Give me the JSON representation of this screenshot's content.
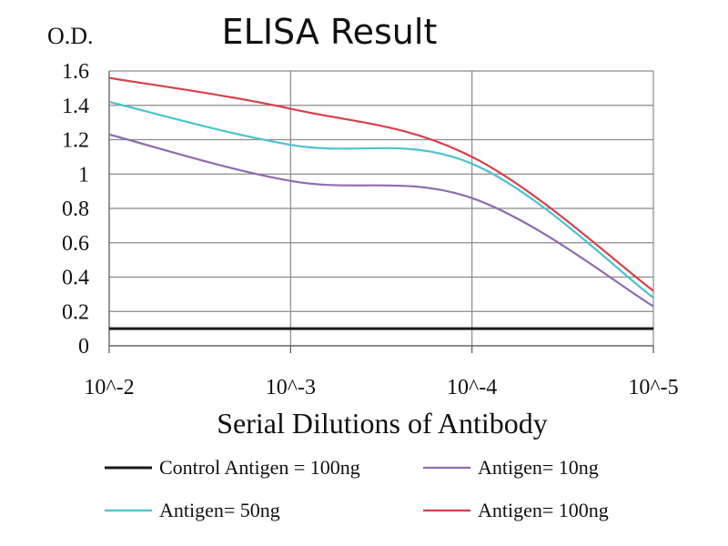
{
  "chart_data": {
    "type": "line",
    "title": "ELISA Result",
    "ylabel": "O.D.",
    "xlabel": "Serial Dilutions of Antibody",
    "x_ticks": [
      "10^-2",
      "10^-3",
      "10^-4",
      "10^-5"
    ],
    "x_scale": "log",
    "ylim": [
      0,
      1.6
    ],
    "y_ticks": [
      "0",
      "0.2",
      "0.4",
      "0.6",
      "0.8",
      "1",
      "1.2",
      "1.4",
      "1.6"
    ],
    "grid": true,
    "legend_position": "bottom",
    "series": [
      {
        "name": "Control Antigen = 100ng",
        "color": "#1a1a1a",
        "values": [
          0.1,
          0.1,
          0.1,
          0.1
        ]
      },
      {
        "name": "Antigen= 10ng",
        "color": "#8e6bb0",
        "values": [
          1.23,
          0.96,
          0.86,
          0.23
        ]
      },
      {
        "name": "Antigen= 50ng",
        "color": "#4cc3cf",
        "values": [
          1.42,
          1.17,
          1.06,
          0.28
        ]
      },
      {
        "name": "Antigen= 100ng",
        "color": "#d9404a",
        "values": [
          1.56,
          1.38,
          1.1,
          0.32
        ]
      }
    ]
  }
}
